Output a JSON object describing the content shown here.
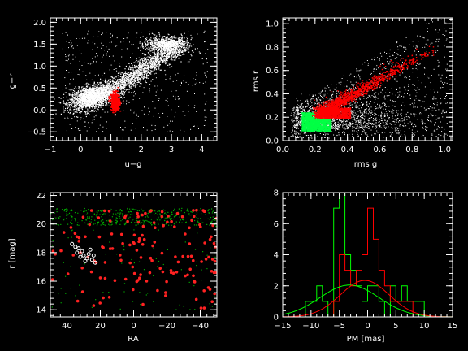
{
  "chart_data": [
    {
      "type": "scatter",
      "panel": "top-left",
      "xlabel": "u−g",
      "ylabel": "g−r",
      "xlim": [
        -1,
        4.5
      ],
      "ylim": [
        -0.7,
        2.1
      ],
      "xticks": [
        -1,
        0,
        1,
        2,
        3,
        4
      ],
      "yticks": [
        -0.5,
        0.0,
        0.5,
        1.0,
        1.5,
        2.0
      ],
      "xtick_labels": [
        "−1",
        "0",
        "1",
        "2",
        "3",
        "4"
      ],
      "ytick_labels": [
        "−0.5",
        "0.0",
        "0.5",
        "1.0",
        "1.5",
        "2.0"
      ],
      "grid": false,
      "series": [
        {
          "color": "#ffffff",
          "description_points": "dense stellar locus cloud",
          "centroids": [
            [
              0.4,
              0.25
            ],
            [
              1.2,
              0.5
            ],
            [
              2.2,
              1.1
            ],
            [
              2.7,
              1.45
            ],
            [
              3.1,
              1.5
            ]
          ]
        },
        {
          "color": "#ff0000",
          "centroids": [
            [
              1.15,
              0.18
            ]
          ],
          "x_range": [
            1.0,
            1.3
          ],
          "y_range": [
            -0.05,
            0.4
          ]
        }
      ]
    },
    {
      "type": "scatter",
      "panel": "top-right",
      "xlabel": "rms g",
      "ylabel": "rms r",
      "xlim": [
        0.0,
        1.05
      ],
      "ylim": [
        0.0,
        1.05
      ],
      "xticks": [
        0.0,
        0.2,
        0.4,
        0.6,
        0.8,
        1.0
      ],
      "yticks": [
        0.0,
        0.2,
        0.4,
        0.6,
        0.8,
        1.0
      ],
      "xtick_labels": [
        "0.0",
        "0.2",
        "0.4",
        "0.6",
        "0.8",
        "1.0"
      ],
      "ytick_labels": [
        "0.0",
        "0.2",
        "0.4",
        "0.6",
        "0.8",
        "1.0"
      ],
      "grid": false,
      "series": [
        {
          "color": "#ffffff",
          "x_range": [
            0.05,
            1.0
          ],
          "y_range": [
            0.0,
            1.0
          ]
        },
        {
          "color": "#00ff44",
          "x_range": [
            0.05,
            0.3
          ],
          "y_range": [
            0.05,
            0.28
          ]
        },
        {
          "color": "#ff0000",
          "x_range": [
            0.22,
            0.95
          ],
          "y_range": [
            0.18,
            0.85
          ]
        }
      ]
    },
    {
      "type": "scatter",
      "panel": "bottom-left",
      "xlabel": "RA",
      "ylabel": "r [mag]",
      "xlim": [
        50,
        -50
      ],
      "ylim": [
        13.5,
        22.2
      ],
      "xticks": [
        40,
        20,
        0,
        -20,
        -40
      ],
      "yticks": [
        14,
        16,
        18,
        20,
        22
      ],
      "xtick_labels": [
        "40",
        "20",
        "0",
        "−20",
        "−40"
      ],
      "ytick_labels": [
        "14",
        "16",
        "18",
        "20",
        "22"
      ],
      "grid": false,
      "series": [
        {
          "color": "#00aa00",
          "x_range": [
            -50,
            50
          ],
          "y_range": [
            19.8,
            21.2
          ]
        },
        {
          "color": "#ff2222",
          "x_range": [
            -50,
            50
          ],
          "y_range": [
            13.8,
            21
          ]
        },
        {
          "color": "#ffffff",
          "marker": "open-circle",
          "x_range": [
            22,
            38
          ],
          "y_range": [
            17.3,
            18.6
          ]
        }
      ],
      "white_points": [
        [
          37,
          18.6
        ],
        [
          35,
          18.4
        ],
        [
          33,
          18.3
        ],
        [
          34,
          18.0
        ],
        [
          31,
          18.1
        ],
        [
          30,
          17.8
        ],
        [
          28,
          17.6
        ],
        [
          27,
          17.9
        ],
        [
          25,
          17.5
        ],
        [
          24,
          17.8
        ],
        [
          23,
          17.3
        ],
        [
          29,
          17.4
        ],
        [
          32,
          17.7
        ],
        [
          26,
          18.2
        ]
      ]
    },
    {
      "type": "line",
      "panel": "bottom-right",
      "xlabel": "PM [mas]",
      "ylabel": "",
      "xlim": [
        -15,
        15
      ],
      "ylim": [
        0,
        8
      ],
      "xticks": [
        -15,
        -10,
        -5,
        0,
        5,
        10,
        15
      ],
      "yticks": [
        0,
        2,
        4,
        6,
        8
      ],
      "xtick_labels": [
        "−15",
        "−10",
        "−5",
        "0",
        "5",
        "10",
        "15"
      ],
      "ytick_labels": [
        "0",
        "2",
        "4",
        "6",
        "8"
      ],
      "grid": false,
      "histograms": [
        {
          "color": "#00ff00",
          "bin_width": 1,
          "bin_edges": [
            -15,
            -14,
            -13,
            -12,
            -11,
            -10,
            -9,
            -8,
            -7,
            -6,
            -5,
            -4,
            -3,
            -2,
            -1,
            0,
            1,
            2,
            3,
            4,
            5,
            6,
            7,
            8,
            9,
            10,
            11,
            12,
            13,
            14,
            15
          ],
          "counts": [
            0,
            0,
            0,
            0,
            1,
            1,
            2,
            1,
            0,
            7,
            8,
            4,
            3,
            2,
            1,
            2,
            2,
            1,
            0,
            2,
            1,
            2,
            1,
            1,
            1,
            0,
            0,
            0,
            0,
            0
          ]
        },
        {
          "color": "#ff0000",
          "bin_width": 1,
          "bin_edges": [
            -15,
            -14,
            -13,
            -12,
            -11,
            -10,
            -9,
            -8,
            -7,
            -6,
            -5,
            -4,
            -3,
            -2,
            -1,
            0,
            1,
            2,
            3,
            4,
            5,
            6,
            7,
            8,
            9,
            10,
            11,
            12,
            13,
            14,
            15
          ],
          "counts": [
            0,
            0,
            0,
            0,
            0,
            0,
            0,
            0,
            0,
            1,
            4,
            3,
            2,
            3,
            4,
            7,
            5,
            3,
            2,
            1,
            1,
            1,
            1,
            0,
            0,
            0,
            0,
            0,
            0,
            0
          ]
        }
      ],
      "curves": [
        {
          "color": "#00ff00",
          "kind": "gaussian",
          "mu": -3.2,
          "sigma": 5.2,
          "amp": 2.05
        },
        {
          "color": "#ff0000",
          "kind": "gaussian",
          "mu": -0.5,
          "sigma": 4.3,
          "amp": 2.35
        }
      ]
    }
  ]
}
